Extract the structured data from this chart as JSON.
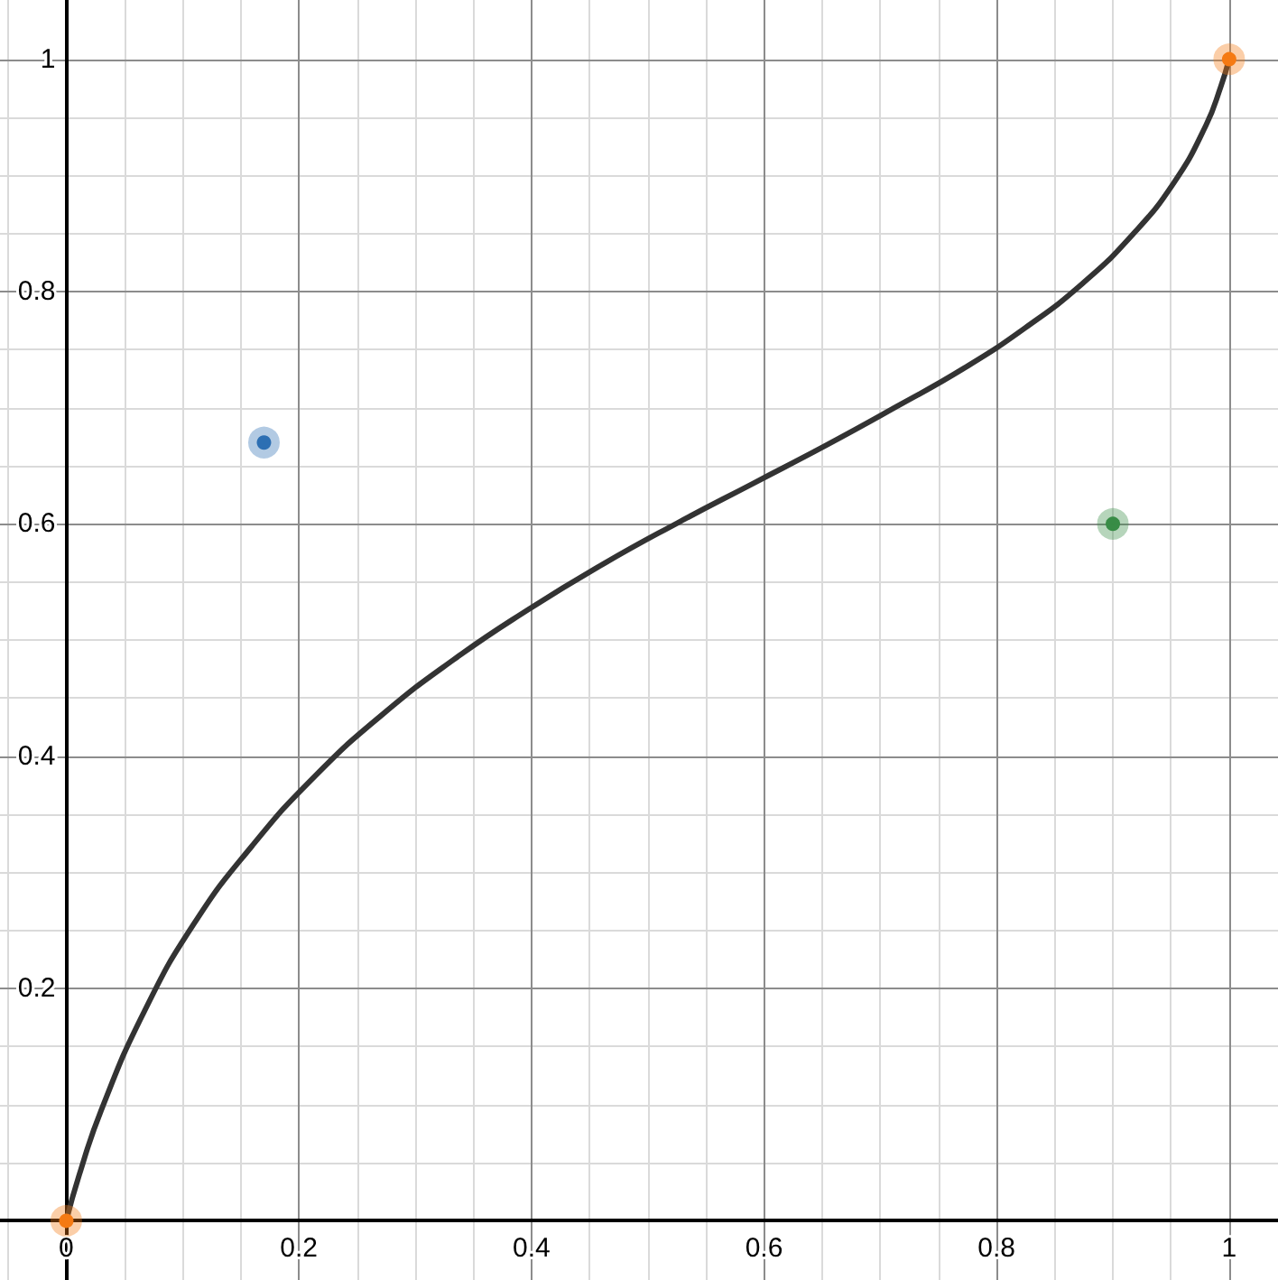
{
  "chart_data": {
    "type": "line",
    "xlim": [
      -0.057,
      1.042
    ],
    "ylim": [
      -0.051,
      1.051
    ],
    "xticks": [
      {
        "value": -0.05,
        "label": null
      },
      0,
      {
        "value": 0.05,
        "label": null
      },
      {
        "value": 0.1,
        "label": null
      },
      {
        "value": 0.15,
        "label": null
      },
      0.2,
      {
        "value": 0.25,
        "label": null
      },
      {
        "value": 0.3,
        "label": null
      },
      {
        "value": 0.35,
        "label": null
      },
      0.4,
      {
        "value": 0.45,
        "label": null
      },
      {
        "value": 0.5,
        "label": null
      },
      {
        "value": 0.55,
        "label": null
      },
      0.6,
      {
        "value": 0.65,
        "label": null
      },
      {
        "value": 0.7,
        "label": null
      },
      {
        "value": 0.75,
        "label": null
      },
      0.8,
      {
        "value": 0.85,
        "label": null
      },
      {
        "value": 0.9,
        "label": null
      },
      {
        "value": 0.95,
        "label": null
      },
      1
    ],
    "yticks": [
      {
        "value": 0.05,
        "label": null
      },
      {
        "value": 0.1,
        "label": null
      },
      {
        "value": 0.15,
        "label": null
      },
      0.2,
      {
        "value": 0.25,
        "label": null
      },
      {
        "value": 0.3,
        "label": null
      },
      {
        "value": 0.35,
        "label": null
      },
      0.4,
      {
        "value": 0.45,
        "label": null
      },
      {
        "value": 0.5,
        "label": null
      },
      {
        "value": 0.55,
        "label": null
      },
      0.6,
      {
        "value": 0.65,
        "label": null
      },
      {
        "value": 0.7,
        "label": null
      },
      {
        "value": 0.75,
        "label": null
      },
      0.8,
      {
        "value": 0.85,
        "label": null
      },
      {
        "value": 0.9,
        "label": null
      },
      {
        "value": 0.95,
        "label": null
      },
      1
    ],
    "grid": true,
    "series": [
      {
        "color": "#333333",
        "marker": "none",
        "x": [
          0,
          0.011,
          0.03,
          0.067,
          0.11,
          0.16,
          0.214,
          0.272,
          0.333,
          0.397,
          0.461,
          0.526,
          0.591,
          0.654,
          0.714,
          0.772,
          0.825,
          0.874,
          0.916,
          0.952,
          0.98,
          0.993,
          1
        ],
        "values": [
          0,
          0.039,
          0.095,
          0.18,
          0.256,
          0.323,
          0.383,
          0.436,
          0.483,
          0.526,
          0.565,
          0.601,
          0.635,
          0.668,
          0.701,
          0.734,
          0.769,
          0.807,
          0.848,
          0.893,
          0.943,
          0.977,
          1
        ]
      },
      {
        "type": "scatter",
        "color": "#f57a14",
        "marker": "circle",
        "x": [
          0,
          1
        ],
        "values": [
          0,
          1
        ]
      },
      {
        "type": "scatter",
        "color": "#2d70b3",
        "marker": "circle",
        "x": [
          0.17
        ],
        "values": [
          0.67
        ]
      },
      {
        "type": "scatter",
        "color": "#388c46",
        "marker": "circle",
        "x": [
          0.9
        ],
        "values": [
          0.6
        ]
      }
    ]
  }
}
